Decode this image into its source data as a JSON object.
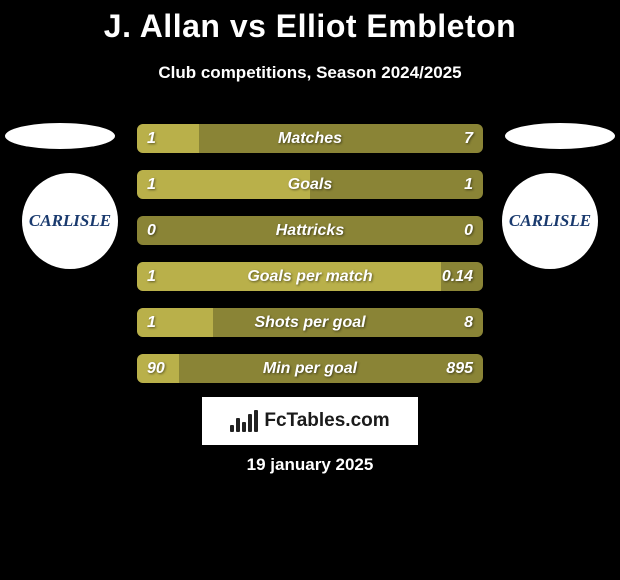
{
  "title": "J. Allan vs Elliot Embleton",
  "subtitle": "Club competitions, Season 2024/2025",
  "date": "19 january 2025",
  "brand": "FcTables.com",
  "badge_text": "CARLISLE",
  "colors": {
    "background": "#000000",
    "bar_track": "#8a8436",
    "bar_fill": "#b9b04a",
    "text": "#ffffff",
    "badge_bg": "#ffffff",
    "badge_text": "#1a3a6e"
  },
  "bars": [
    {
      "label": "Matches",
      "left": "1",
      "right": "7",
      "fill_pct": 18
    },
    {
      "label": "Goals",
      "left": "1",
      "right": "1",
      "fill_pct": 50
    },
    {
      "label": "Hattricks",
      "left": "0",
      "right": "0",
      "fill_pct": 0
    },
    {
      "label": "Goals per match",
      "left": "1",
      "right": "0.14",
      "fill_pct": 88
    },
    {
      "label": "Shots per goal",
      "left": "1",
      "right": "8",
      "fill_pct": 22
    },
    {
      "label": "Min per goal",
      "left": "90",
      "right": "895",
      "fill_pct": 12
    }
  ]
}
